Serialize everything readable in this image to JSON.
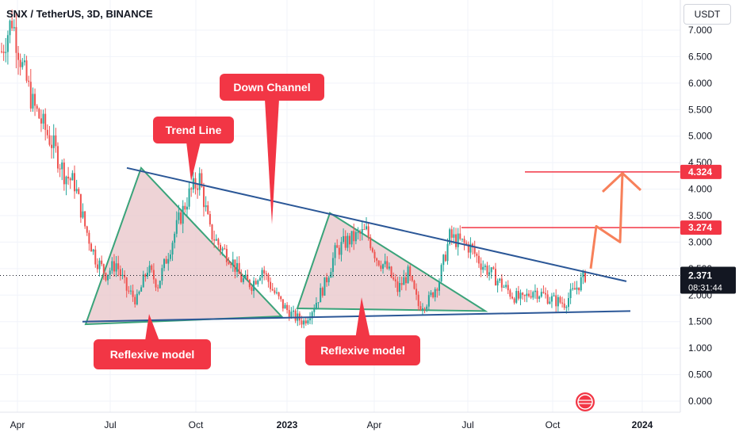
{
  "header": {
    "symbol_title": "SNX / TetherUS, 3D, BINANCE",
    "currency": "USDT"
  },
  "colors": {
    "up": "#26a69a",
    "down": "#ef5350",
    "callout": "#f23645",
    "trend_line": "#2b5797",
    "triangle_edge": "#3aa37a",
    "triangle_fill": "#e8c4c8",
    "level_line": "#f23645",
    "arrow": "#f7805a"
  },
  "chart_data": {
    "type": "candlestick",
    "price_axis": {
      "ticks": [
        "7.000",
        "6.500",
        "6.000",
        "5.500",
        "5.000",
        "4.500",
        "4.000",
        "3.500",
        "3.000",
        "2.500",
        "2.000",
        "1.500",
        "1.000",
        "0.500",
        "0.000"
      ],
      "tick_values": [
        7.0,
        6.5,
        6.0,
        5.5,
        5.0,
        4.5,
        4.0,
        3.5,
        3.0,
        2.5,
        2.0,
        1.5,
        1.0,
        0.5,
        0.0
      ],
      "range": [
        0.0,
        7.4
      ]
    },
    "time_axis": {
      "labels": [
        {
          "text": "Apr",
          "bold": false
        },
        {
          "text": "Jul",
          "bold": false
        },
        {
          "text": "Oct",
          "bold": false
        },
        {
          "text": "2023",
          "bold": true
        },
        {
          "text": "Apr",
          "bold": false
        },
        {
          "text": "Jul",
          "bold": false
        },
        {
          "text": "Oct",
          "bold": false
        },
        {
          "text": "2024",
          "bold": true
        }
      ]
    },
    "price_path": [
      [
        0,
        6.6
      ],
      [
        5,
        7.2
      ],
      [
        10,
        6.3
      ],
      [
        15,
        5.6
      ],
      [
        20,
        5.2
      ],
      [
        25,
        4.8
      ],
      [
        30,
        4.3
      ],
      [
        35,
        4.1
      ],
      [
        40,
        3.3
      ],
      [
        45,
        2.7
      ],
      [
        50,
        2.4
      ],
      [
        55,
        2.6
      ],
      [
        60,
        2.1
      ],
      [
        65,
        1.9
      ],
      [
        70,
        2.5
      ],
      [
        75,
        2.2
      ],
      [
        80,
        2.8
      ],
      [
        85,
        3.4
      ],
      [
        90,
        3.9
      ],
      [
        95,
        4.2
      ],
      [
        100,
        3.2
      ],
      [
        105,
        2.9
      ],
      [
        110,
        2.7
      ],
      [
        115,
        2.3
      ],
      [
        120,
        2.2
      ],
      [
        125,
        2.5
      ],
      [
        130,
        2.1
      ],
      [
        135,
        1.8
      ],
      [
        140,
        1.6
      ],
      [
        145,
        1.5
      ],
      [
        150,
        1.8
      ],
      [
        155,
        2.2
      ],
      [
        160,
        2.8
      ],
      [
        165,
        3.0
      ],
      [
        170,
        3.1
      ],
      [
        175,
        3.2
      ],
      [
        180,
        2.7
      ],
      [
        185,
        2.5
      ],
      [
        190,
        2.1
      ],
      [
        195,
        2.4
      ],
      [
        200,
        1.8
      ],
      [
        205,
        1.9
      ],
      [
        210,
        2.3
      ],
      [
        215,
        3.1
      ],
      [
        220,
        3.0
      ],
      [
        225,
        2.9
      ],
      [
        230,
        2.6
      ],
      [
        235,
        2.4
      ],
      [
        240,
        2.2
      ],
      [
        245,
        2.0
      ],
      [
        250,
        1.9
      ],
      [
        255,
        2.1
      ],
      [
        260,
        2.0
      ],
      [
        265,
        1.9
      ],
      [
        270,
        1.85
      ],
      [
        275,
        2.1
      ],
      [
        280,
        2.371
      ]
    ],
    "level_lines": [
      {
        "value": 4.324,
        "label": "4.324"
      },
      {
        "value": 3.274,
        "label": "3.274"
      }
    ],
    "last_price": {
      "value": 2.371,
      "label": "2.371",
      "countdown": "08:31:44"
    },
    "annotations": [
      {
        "id": "down-channel",
        "text": "Down Channel"
      },
      {
        "id": "trend-line",
        "text": "Trend Line"
      },
      {
        "id": "reflexive-1",
        "text": "Reflexive model"
      },
      {
        "id": "reflexive-2",
        "text": "Reflexive model"
      }
    ]
  }
}
